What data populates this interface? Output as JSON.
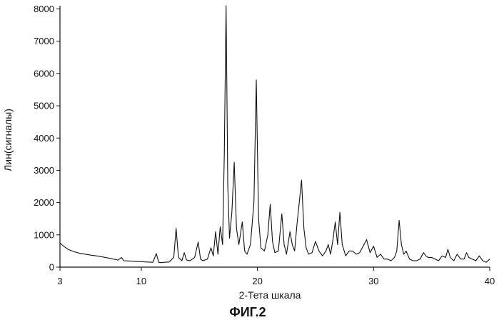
{
  "chart_data": {
    "type": "line",
    "title": "",
    "xlabel": "2-Тета шкала",
    "ylabel": "Лин(сигналы)",
    "caption": "ФИГ.2",
    "xlim": [
      3,
      40
    ],
    "ylim": [
      0,
      8100
    ],
    "x_ticks": [
      3,
      10,
      20,
      30,
      40
    ],
    "x_tick_labels": [
      "3",
      "10",
      "20",
      "30",
      "40"
    ],
    "y_ticks": [
      0,
      1000,
      2000,
      3000,
      4000,
      5000,
      6000,
      7000,
      8000
    ],
    "y_tick_labels": [
      "0",
      "1000",
      "2000",
      "3000",
      "4000",
      "5000",
      "6000",
      "7000",
      "8000"
    ],
    "grid": false,
    "legend": "none",
    "line_color": "#111111",
    "series": [
      {
        "x": [
          3.0,
          3.3,
          3.7,
          4.2,
          4.7,
          5.2,
          5.7,
          6.3,
          6.9,
          7.5,
          8.0,
          8.3,
          8.5,
          9.0,
          9.5,
          10.0,
          10.5,
          11.0,
          11.3,
          11.5,
          11.7,
          12.0,
          12.4,
          12.8,
          13.0,
          13.2,
          13.5,
          13.7,
          13.9,
          14.2,
          14.6,
          14.9,
          15.1,
          15.3,
          15.7,
          16.0,
          16.2,
          16.4,
          16.6,
          16.8,
          17.0,
          17.15,
          17.3,
          17.45,
          17.6,
          17.8,
          18.0,
          18.2,
          18.4,
          18.7,
          18.9,
          19.1,
          19.4,
          19.7,
          19.9,
          20.1,
          20.3,
          20.6,
          20.9,
          21.1,
          21.3,
          21.5,
          21.8,
          22.1,
          22.3,
          22.5,
          22.8,
          23.0,
          23.2,
          23.4,
          23.6,
          23.8,
          24.0,
          24.2,
          24.4,
          24.7,
          25.0,
          25.3,
          25.6,
          25.9,
          26.1,
          26.3,
          26.5,
          26.7,
          26.9,
          27.1,
          27.3,
          27.6,
          27.9,
          28.2,
          28.5,
          28.8,
          29.1,
          29.4,
          29.7,
          30.0,
          30.3,
          30.6,
          30.9,
          31.2,
          31.5,
          31.8,
          32.0,
          32.2,
          32.4,
          32.6,
          32.8,
          33.1,
          33.4,
          33.7,
          34.0,
          34.3,
          34.5,
          34.7,
          35.0,
          35.3,
          35.6,
          35.9,
          36.2,
          36.4,
          36.6,
          36.9,
          37.2,
          37.5,
          37.8,
          38.0,
          38.2,
          38.5,
          38.8,
          39.1,
          39.4,
          39.7,
          40.0
        ],
        "y": [
          750,
          650,
          550,
          480,
          430,
          400,
          370,
          340,
          300,
          260,
          220,
          300,
          200,
          190,
          180,
          170,
          160,
          150,
          420,
          150,
          140,
          150,
          160,
          300,
          1200,
          300,
          200,
          450,
          220,
          200,
          300,
          780,
          250,
          200,
          250,
          600,
          350,
          1100,
          400,
          1250,
          700,
          3500,
          8100,
          2500,
          900,
          1700,
          3250,
          1200,
          700,
          1400,
          500,
          400,
          700,
          2000,
          5800,
          1500,
          600,
          500,
          1000,
          1950,
          800,
          450,
          500,
          1650,
          700,
          400,
          1100,
          700,
          500,
          1300,
          2000,
          2700,
          1200,
          600,
          400,
          450,
          800,
          500,
          350,
          500,
          700,
          400,
          850,
          1400,
          700,
          1700,
          700,
          350,
          500,
          500,
          400,
          450,
          650,
          850,
          450,
          650,
          300,
          400,
          250,
          250,
          200,
          300,
          500,
          1450,
          700,
          400,
          500,
          250,
          200,
          200,
          250,
          450,
          350,
          300,
          300,
          250,
          200,
          350,
          300,
          550,
          300,
          200,
          400,
          250,
          250,
          450,
          300,
          250,
          200,
          350,
          200,
          150,
          250
        ]
      }
    ]
  }
}
